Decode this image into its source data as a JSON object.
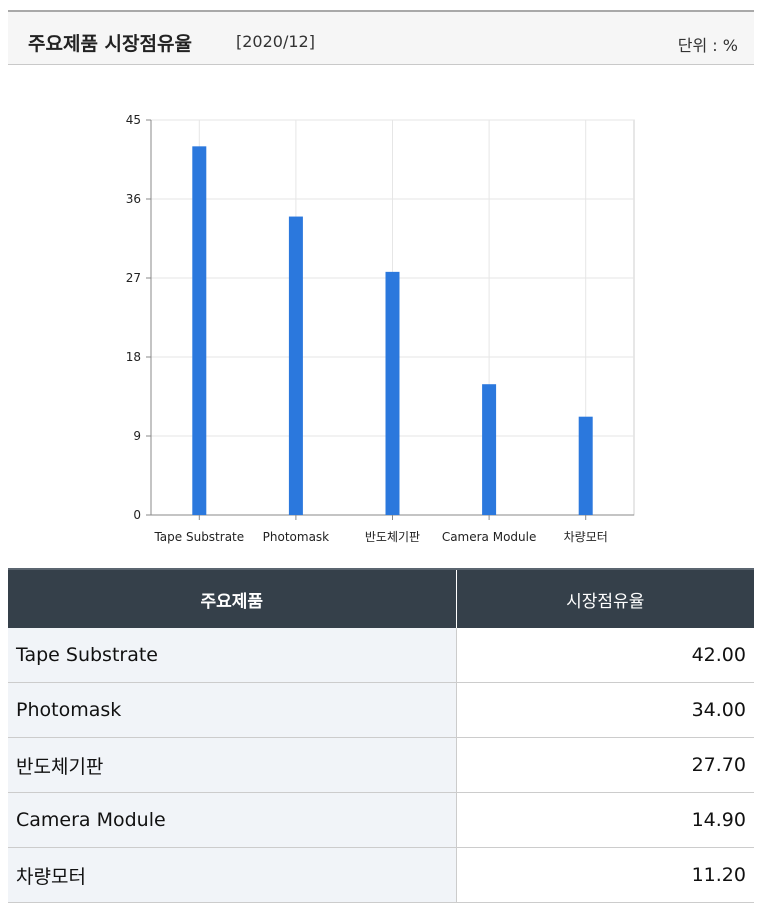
{
  "header": {
    "title": "주요제품 시장점유율",
    "period": "[2020/12]",
    "unit": "단위 : %"
  },
  "colors": {
    "bar": "#2b78dd",
    "grid": "#e6e6e6",
    "axis": "#888888",
    "table_header_bg": "#35404a",
    "table_label_bg": "#f1f4f8"
  },
  "chart_data": {
    "type": "bar",
    "categories": [
      "Tape Substrate",
      "Photomask",
      "반도체기판",
      "Camera Module",
      "차량모터"
    ],
    "values": [
      42.0,
      34.0,
      27.7,
      14.9,
      11.2
    ],
    "ylim": [
      0,
      45
    ],
    "yticks": [
      0,
      9,
      18,
      27,
      36,
      45
    ],
    "grid": true,
    "legend": "none"
  },
  "table": {
    "headers": [
      "주요제품",
      "시장점유율"
    ],
    "rows": [
      {
        "name": "Tape Substrate",
        "value": "42.00"
      },
      {
        "name": "Photomask",
        "value": "34.00"
      },
      {
        "name": "반도체기판",
        "value": "27.70"
      },
      {
        "name": "Camera Module",
        "value": "14.90"
      },
      {
        "name": "차량모터",
        "value": "11.20"
      }
    ]
  }
}
